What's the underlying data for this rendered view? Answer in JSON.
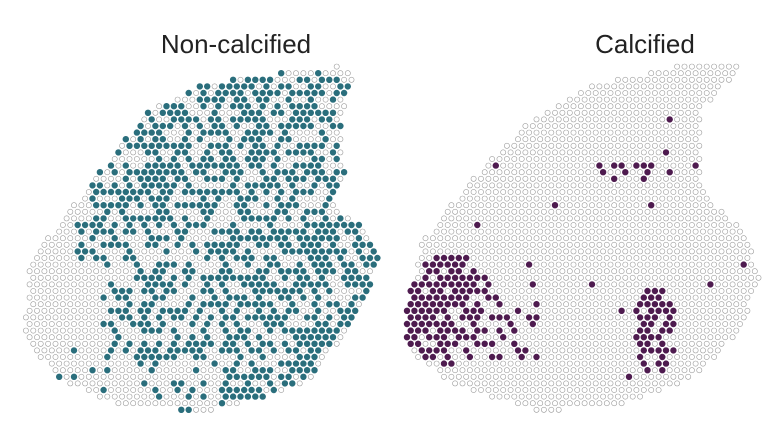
{
  "panels": [
    {
      "title": "Non-calcified"
    },
    {
      "title": "Calcified"
    }
  ]
}
